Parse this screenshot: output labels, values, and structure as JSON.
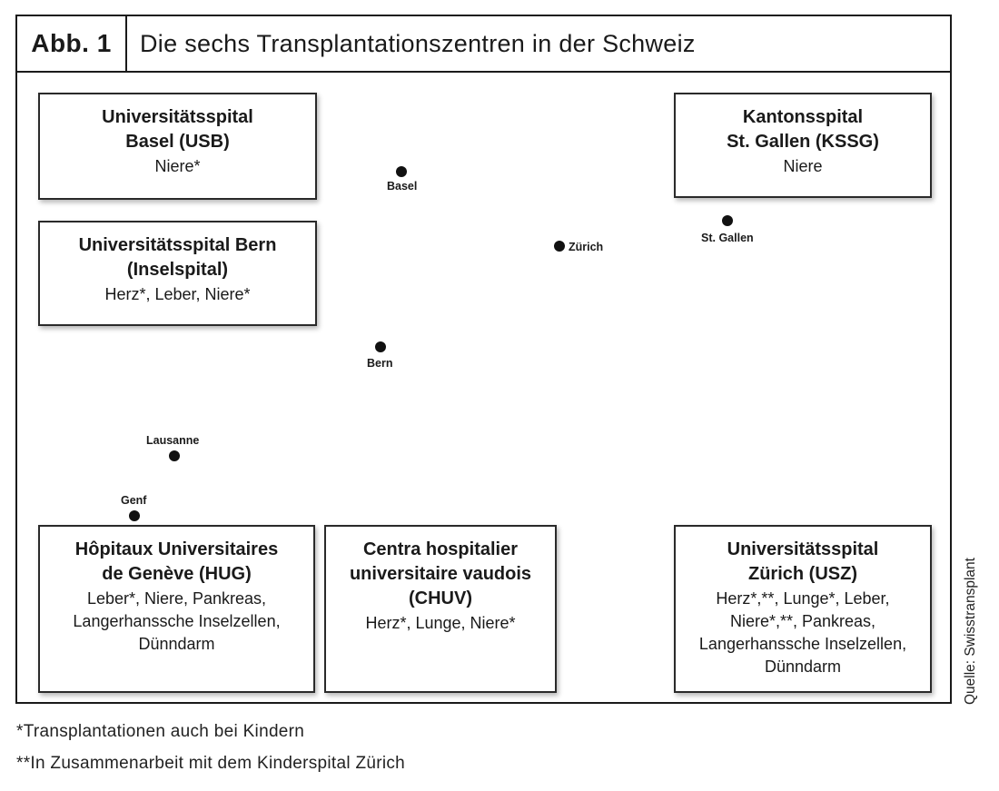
{
  "header": {
    "label": "Abb. 1",
    "title": "Die sechs Transplantationszentren in der Schweiz"
  },
  "colors": {
    "region_lightest": "#cde5f7",
    "region_light": "#a9d7f3",
    "region_mid": "#5bbcec",
    "region_stgallen": "#1eaee9",
    "region_dark": "#1a8fd4"
  },
  "cities": {
    "basel": "Basel",
    "bern": "Bern",
    "zurich": "Zürich",
    "stgallen": "St. Gallen",
    "lausanne": "Lausanne",
    "genf": "Genf"
  },
  "centers": {
    "basel": {
      "name": "Universitätsspital\nBasel (USB)",
      "organs": "Niere*"
    },
    "bern": {
      "name": "Universitätsspital Bern\n(Inselspital)",
      "organs": "Herz*, Leber, Niere*"
    },
    "stgallen": {
      "name": "Kantonsspital\nSt. Gallen (KSSG)",
      "organs": "Niere"
    },
    "geneve": {
      "name": "Hôpitaux Universitaires\nde Genève (HUG)",
      "organs": "Leber*, Niere, Pankreas,\nLangerhanssche Inselzellen,\nDünndarm"
    },
    "vaud": {
      "name": "Centra hospitalier\nuniversitaire vaudois\n(CHUV)",
      "organs": "Herz*, Lunge, Niere*"
    },
    "zurich": {
      "name": "Universitätsspital\nZürich (USZ)",
      "organs": "Herz*,**, Lunge*, Leber,\nNiere*,**, Pankreas,\nLangerhanssche Inselzellen,\nDünndarm"
    }
  },
  "source": "Quelle: Swisstransplant",
  "footnotes": {
    "children": "*Transplantationen auch bei Kindern",
    "kispi": "**In Zusammenarbeit mit dem Kinderspital Zürich"
  }
}
